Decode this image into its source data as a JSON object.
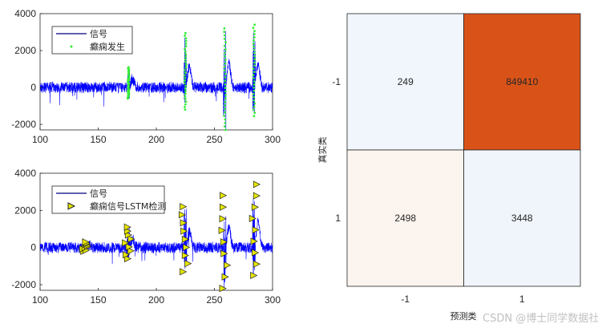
{
  "chart_data": [
    {
      "type": "line",
      "xlim": [
        100,
        300
      ],
      "ylim": [
        -2300,
        4000
      ],
      "xticks": [
        "100",
        "150",
        "200",
        "250",
        "300"
      ],
      "yticks": [
        "4000",
        "2000",
        "0",
        "-2000"
      ],
      "legend": {
        "placement": "top-left",
        "entries": [
          "信号",
          "癫痫发生"
        ]
      },
      "series": [
        {
          "name": "信号",
          "color": "#0000ff",
          "baseline_amplitude": 300
        },
        {
          "name": "癫痫发生",
          "color": "#33ee33",
          "marker": "dot",
          "events": [
            {
              "x": 176,
              "peak": 1100,
              "trough": -600
            },
            {
              "x": 225,
              "peak": 2950,
              "trough": -1200
            },
            {
              "x": 259,
              "peak": 3200,
              "trough": -2300
            },
            {
              "x": 284,
              "peak": 3400,
              "trough": -1550
            }
          ]
        }
      ]
    },
    {
      "type": "line",
      "xlim": [
        100,
        300
      ],
      "ylim": [
        -2300,
        4000
      ],
      "xticks": [
        "100",
        "150",
        "200",
        "250",
        "300"
      ],
      "yticks": [
        "4000",
        "2000",
        "0",
        "-2000"
      ],
      "legend": {
        "placement": "top-left",
        "entries": [
          "信号",
          "癫痫信号LSTM检测"
        ]
      },
      "series": [
        {
          "name": "信号",
          "color": "#0000ff"
        },
        {
          "name": "癫痫信号LSTM检测",
          "color": "#e6e600",
          "marker": "triangle-right",
          "events": [
            {
              "x": 139,
              "peak": 300,
              "trough": -200
            },
            {
              "x": 176,
              "peak": 1100,
              "trough": -600
            },
            {
              "x": 225,
              "peak": 2200,
              "trough": -1300
            },
            {
              "x": 259,
              "peak": 2800,
              "trough": -2200
            },
            {
              "x": 284,
              "peak": 3400,
              "trough": -1500
            }
          ]
        }
      ]
    },
    {
      "type": "heatmap",
      "xlabel": "预测类",
      "ylabel": "真实类",
      "xticks": [
        "-1",
        "1"
      ],
      "yticks": [
        "-1",
        "1"
      ],
      "values": [
        [
          249,
          849410
        ],
        [
          2498,
          3448
        ]
      ],
      "colors": [
        [
          "#f0f6fc",
          "#d95319"
        ],
        [
          "#fcf4ef",
          "#f0f5fb"
        ]
      ]
    }
  ],
  "watermark": "CSDN @博士同学数据社区"
}
